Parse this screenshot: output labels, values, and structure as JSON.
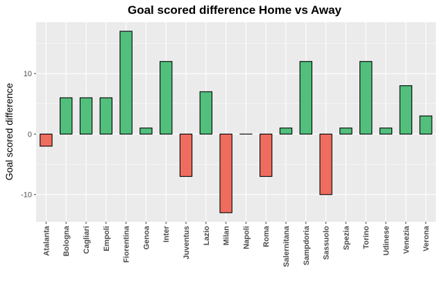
{
  "chart_data": {
    "type": "bar",
    "title": "Goal scored difference Home vs Away",
    "xlabel": "",
    "ylabel": "Goal scored difference",
    "categories": [
      "Atalanta",
      "Bologna",
      "Cagliari",
      "Empoli",
      "Fiorentina",
      "Genoa",
      "Inter",
      "Juventus",
      "Lazio",
      "Milan",
      "Napoli",
      "Roma",
      "Salernitana",
      "Sampdoria",
      "Sassuolo",
      "Spezia",
      "Torino",
      "Udinese",
      "Venezia",
      "Verona"
    ],
    "values": [
      -2,
      6,
      6,
      6,
      17,
      1,
      12,
      -7,
      7,
      -13,
      0,
      -7,
      1,
      12,
      -10,
      1,
      12,
      1,
      8,
      3
    ],
    "ylim": [
      -14.5,
      18.5
    ],
    "yticks": [
      -10,
      0,
      10
    ],
    "grid": true,
    "legend": "none",
    "colors": {
      "positive": "#52bf7c",
      "negative": "#ee6d5f",
      "panel": "#ebebeb",
      "gridline": "#ffffff",
      "outline": "#000000"
    }
  }
}
